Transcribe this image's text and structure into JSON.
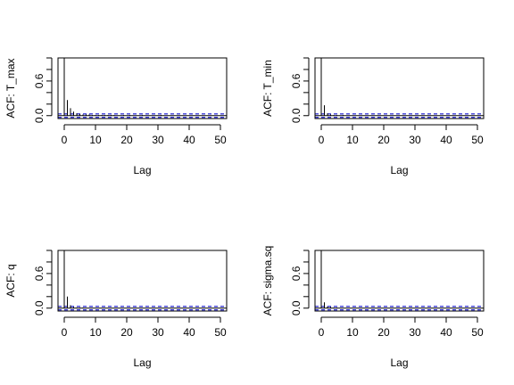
{
  "chart_data": [
    {
      "type": "bar",
      "xlabel": "Lag",
      "ylabel": "ACF: T_max",
      "xlim": [
        -2,
        52
      ],
      "ylim": [
        -0.05,
        1.0
      ],
      "xticks": [
        "0",
        "10",
        "20",
        "30",
        "40",
        "50"
      ],
      "yticks": [
        "0.0",
        "0.6"
      ],
      "conf_band": 0.03,
      "lags": [
        0,
        1,
        2,
        3,
        4,
        5,
        6,
        7,
        8,
        9,
        10,
        11,
        12,
        13,
        14,
        15,
        16,
        17,
        18,
        19,
        20,
        21,
        22,
        23,
        24,
        25,
        26,
        27,
        28,
        29,
        30,
        31,
        32,
        33,
        34,
        35,
        36,
        37,
        38,
        39,
        40,
        41,
        42,
        43,
        44,
        45,
        46,
        47,
        48,
        49,
        50
      ],
      "acf": [
        1.0,
        0.27,
        0.13,
        0.07,
        0.04,
        0.03,
        0.02,
        0.02,
        0.02,
        0.01,
        0.01,
        0.01,
        0.01,
        0.01,
        0.01,
        0.01,
        0.01,
        0.0,
        0.0,
        0.01,
        0.0,
        0.01,
        0.0,
        0.0,
        0.0,
        0.01,
        0.0,
        0.0,
        0.0,
        0.0,
        0.0,
        0.01,
        0.0,
        0.0,
        0.0,
        0.0,
        0.0,
        0.0,
        0.0,
        0.0,
        0.0,
        0.0,
        0.0,
        0.0,
        0.0,
        0.0,
        0.0,
        0.0,
        0.0,
        0.0,
        0.0
      ]
    },
    {
      "type": "bar",
      "xlabel": "Lag",
      "ylabel": "ACF: T_min",
      "xlim": [
        -2,
        52
      ],
      "ylim": [
        -0.05,
        1.0
      ],
      "xticks": [
        "0",
        "10",
        "20",
        "30",
        "40",
        "50"
      ],
      "yticks": [
        "0.0",
        "0.6"
      ],
      "conf_band": 0.03,
      "lags": [
        0,
        1,
        2,
        3,
        4,
        5,
        6,
        7,
        8,
        9,
        10,
        11,
        12,
        13,
        14,
        15,
        16,
        17,
        18,
        19,
        20,
        21,
        22,
        23,
        24,
        25,
        26,
        27,
        28,
        29,
        30,
        31,
        32,
        33,
        34,
        35,
        36,
        37,
        38,
        39,
        40,
        41,
        42,
        43,
        44,
        45,
        46,
        47,
        48,
        49,
        50
      ],
      "acf": [
        1.0,
        0.18,
        0.04,
        0.02,
        0.01,
        0.01,
        0.0,
        0.01,
        0.0,
        0.0,
        0.0,
        0.0,
        0.0,
        0.0,
        0.0,
        0.0,
        0.0,
        0.0,
        0.0,
        0.0,
        0.0,
        0.0,
        0.0,
        0.0,
        0.0,
        0.0,
        0.0,
        0.0,
        0.0,
        0.0,
        0.0,
        0.0,
        0.0,
        0.0,
        0.0,
        0.0,
        0.0,
        0.0,
        0.0,
        0.0,
        0.0,
        0.0,
        0.0,
        0.0,
        0.0,
        0.0,
        0.0,
        0.0,
        0.0,
        0.0,
        0.0
      ]
    },
    {
      "type": "bar",
      "xlabel": "Lag",
      "ylabel": "ACF: q",
      "xlim": [
        -2,
        52
      ],
      "ylim": [
        -0.05,
        1.0
      ],
      "xticks": [
        "0",
        "10",
        "20",
        "30",
        "40",
        "50"
      ],
      "yticks": [
        "0.0",
        "0.6"
      ],
      "conf_band": 0.03,
      "lags": [
        0,
        1,
        2,
        3,
        4,
        5,
        6,
        7,
        8,
        9,
        10,
        11,
        12,
        13,
        14,
        15,
        16,
        17,
        18,
        19,
        20,
        21,
        22,
        23,
        24,
        25,
        26,
        27,
        28,
        29,
        30,
        31,
        32,
        33,
        34,
        35,
        36,
        37,
        38,
        39,
        40,
        41,
        42,
        43,
        44,
        45,
        46,
        47,
        48,
        49,
        50
      ],
      "acf": [
        1.0,
        0.2,
        0.05,
        0.02,
        0.01,
        0.01,
        0.01,
        0.0,
        0.0,
        0.0,
        0.0,
        0.0,
        0.0,
        0.0,
        0.0,
        0.0,
        0.0,
        0.0,
        0.0,
        0.0,
        0.0,
        0.0,
        0.0,
        0.0,
        0.0,
        0.0,
        0.0,
        0.0,
        0.0,
        0.0,
        0.0,
        0.0,
        0.0,
        0.0,
        0.0,
        0.0,
        0.0,
        0.0,
        0.0,
        0.0,
        0.0,
        0.0,
        0.0,
        0.0,
        0.0,
        0.0,
        0.0,
        0.0,
        0.0,
        0.0,
        0.0
      ]
    },
    {
      "type": "bar",
      "xlabel": "Lag",
      "ylabel": "ACF: sigma.sq",
      "xlim": [
        -2,
        52
      ],
      "ylim": [
        -0.05,
        1.0
      ],
      "xticks": [
        "0",
        "10",
        "20",
        "30",
        "40",
        "50"
      ],
      "yticks": [
        "0.0",
        "0.6"
      ],
      "conf_band": 0.03,
      "lags": [
        0,
        1,
        2,
        3,
        4,
        5,
        6,
        7,
        8,
        9,
        10,
        11,
        12,
        13,
        14,
        15,
        16,
        17,
        18,
        19,
        20,
        21,
        22,
        23,
        24,
        25,
        26,
        27,
        28,
        29,
        30,
        31,
        32,
        33,
        34,
        35,
        36,
        37,
        38,
        39,
        40,
        41,
        42,
        43,
        44,
        45,
        46,
        47,
        48,
        49,
        50
      ],
      "acf": [
        1.0,
        0.1,
        0.03,
        0.02,
        0.01,
        0.01,
        0.0,
        0.0,
        0.0,
        0.0,
        0.0,
        0.0,
        0.0,
        0.0,
        0.0,
        0.0,
        0.0,
        0.0,
        0.0,
        0.0,
        0.0,
        0.0,
        0.0,
        0.0,
        0.0,
        0.0,
        0.0,
        0.0,
        0.0,
        0.0,
        0.0,
        0.0,
        0.0,
        0.0,
        0.0,
        0.0,
        0.0,
        0.0,
        0.0,
        0.0,
        0.0,
        0.0,
        0.0,
        0.0,
        0.0,
        0.0,
        0.0,
        0.0,
        0.0,
        0.0,
        0.0
      ]
    }
  ]
}
